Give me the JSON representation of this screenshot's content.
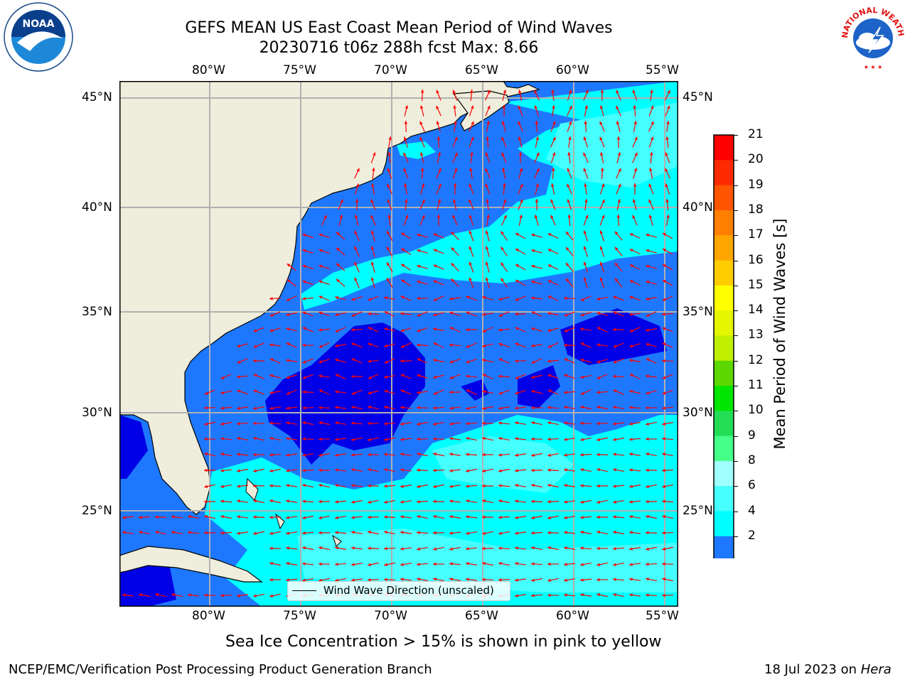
{
  "header": {
    "title": "GEFS MEAN US East Coast Mean Period of Wind Waves",
    "subtitle": "20230716 t06z 288h fcst   Max: 8.66",
    "noaa_logo": {
      "icon": "noaa-logo-icon",
      "text": "NOAA"
    },
    "nws_logo": {
      "icon": "nws-logo-icon",
      "text": "NATIONAL WEATHER SERVICE"
    }
  },
  "map": {
    "lon_labels": [
      "80°W",
      "75°W",
      "70°W",
      "65°W",
      "60°W",
      "55°W"
    ],
    "lat_labels": [
      "45°N",
      "40°N",
      "35°N",
      "30°N",
      "25°N"
    ],
    "legend_label": "Wind Wave Direction (unscaled)",
    "colors": {
      "land": "#efeedc",
      "wave_2_4": "#1e78ff",
      "wave_4_6": "#00ffff",
      "wave_6_8": "#46ffff",
      "below_2": "#0000e6",
      "arrow": "#ff0000",
      "grid": "#b0b0b0"
    }
  },
  "colorbar": {
    "label": "Mean Period of Wind Waves [s]",
    "ticks": [
      "21",
      "20",
      "19",
      "18",
      "17",
      "16",
      "15",
      "14",
      "13",
      "12",
      "11",
      "10",
      "9",
      "8",
      "6",
      "4",
      "2"
    ],
    "levels": [
      {
        "color": "#ff0000"
      },
      {
        "color": "#ff2a00"
      },
      {
        "color": "#ff5500"
      },
      {
        "color": "#ff7f00"
      },
      {
        "color": "#ffa500"
      },
      {
        "color": "#ffcc00"
      },
      {
        "color": "#ffff00"
      },
      {
        "color": "#e5f600"
      },
      {
        "color": "#c0f000"
      },
      {
        "color": "#5cd800"
      },
      {
        "color": "#00e600"
      },
      {
        "color": "#22dd55"
      },
      {
        "color": "#44ff88"
      },
      {
        "color": "#a0ffff"
      },
      {
        "color": "#46ffff"
      },
      {
        "color": "#00ffff"
      },
      {
        "color": "#1e78ff"
      }
    ],
    "extend_color": "#0000e6"
  },
  "footer": {
    "note": "Sea Ice Concentration > 15% is shown in pink to yellow",
    "org": "NCEP/EMC/Verification Post Processing Product Generation Branch",
    "date": "18 Jul 2023 on ",
    "host": "Hera"
  }
}
